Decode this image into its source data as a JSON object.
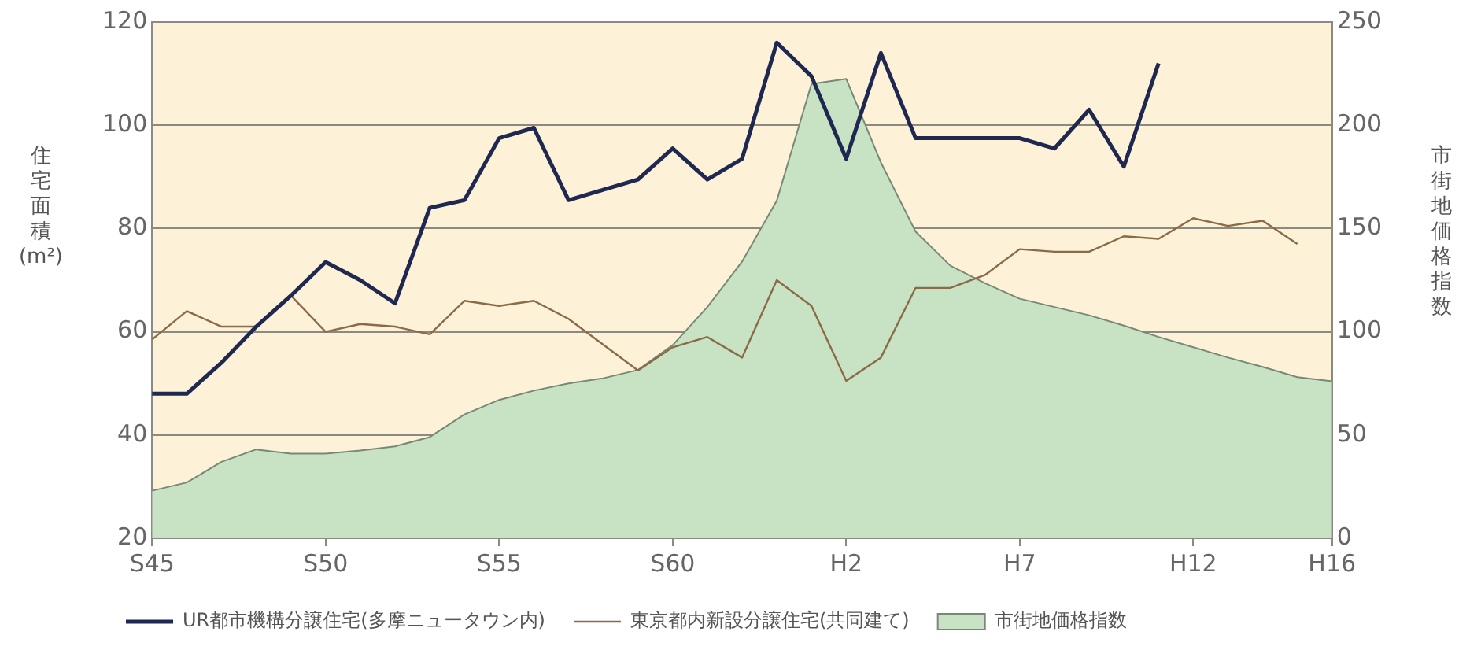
{
  "chart_data": {
    "type": "line",
    "ylabel": "住宅面積(m²)",
    "y2label": "市街地価格指数",
    "categories": [
      "S45",
      null,
      null,
      null,
      null,
      "S50",
      null,
      null,
      null,
      null,
      "S55",
      null,
      null,
      null,
      null,
      "S60",
      null,
      null,
      null,
      null,
      "H2",
      null,
      null,
      null,
      null,
      "H7",
      null,
      null,
      null,
      null,
      "H12",
      null,
      null,
      null,
      "H16"
    ],
    "ylim": [
      20,
      120
    ],
    "yticks": [
      20,
      40,
      60,
      80,
      100,
      120
    ],
    "y2lim": [
      0,
      250
    ],
    "y2ticks": [
      0,
      50,
      100,
      150,
      200,
      250
    ],
    "grid": "y",
    "legend": "bottom",
    "marker": "none",
    "line_style": "solid",
    "series": [
      {
        "name": "UR都市機構分譲住宅(多摩ニュータウン内)",
        "color": "#1f2850",
        "values": [
          48,
          48,
          54,
          61,
          67,
          73.5,
          70,
          65.5,
          84,
          85.5,
          97.5,
          99.5,
          85.5,
          87.5,
          89.5,
          95.5,
          89.5,
          93.5,
          116,
          109.5,
          93.5,
          114,
          97.5,
          97.5,
          97.5,
          97.5,
          95.5,
          103,
          92,
          112,
          null,
          null,
          null,
          null,
          null
        ]
      },
      {
        "name": "東京都内新設分譲住宅(共同建て)",
        "color": "#8a6a48",
        "values": [
          58.5,
          64,
          61,
          61,
          67,
          60,
          61.5,
          61,
          59.5,
          66,
          65,
          66,
          62.5,
          57.5,
          52.5,
          57,
          59,
          55,
          70,
          65,
          50.5,
          55,
          68.5,
          68.5,
          71,
          76,
          75.5,
          75.5,
          78.5,
          78,
          82,
          80.5,
          81.5,
          77,
          null
        ]
      },
      {
        "name": "市街地価格指数",
        "type": "area",
        "axis": "y2",
        "color": "#c8e3c4",
        "values": [
          23,
          27,
          37,
          43,
          41,
          41,
          42.5,
          44.5,
          49,
          60,
          67,
          71.5,
          75,
          77.5,
          81.5,
          93.5,
          112,
          134,
          163.5,
          220,
          222.5,
          182,
          148.5,
          132,
          123.5,
          116,
          112,
          108,
          103,
          97.5,
          92.5,
          87.5,
          83,
          78,
          76
        ]
      }
    ]
  }
}
